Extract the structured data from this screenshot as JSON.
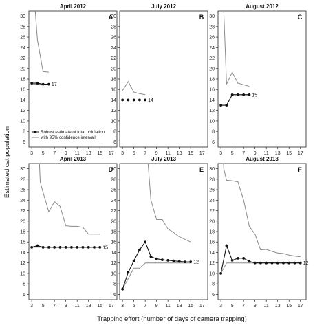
{
  "chart_data": {
    "type": "line",
    "shared": {
      "xlabel": "Trapping effort (number of days of camera trapping)",
      "ylabel": "Estimated cat population",
      "xticks": [
        3,
        5,
        7,
        9,
        11,
        13,
        15,
        17
      ],
      "yticks": [
        6,
        8,
        10,
        12,
        14,
        16,
        18,
        20,
        22,
        24,
        26,
        28,
        30
      ],
      "xlim": [
        2.5,
        18
      ],
      "ylim": [
        5,
        31
      ],
      "legend": {
        "placement": "bottom-left of panel A",
        "items": [
          "Robust estimate of total polulation",
          "with 95% confidence intervall"
        ]
      }
    },
    "panels": [
      {
        "title": "April 2012",
        "letter": "A",
        "end_label": "17",
        "estimate": {
          "x": [
            3,
            4,
            5,
            6
          ],
          "y": [
            17.2,
            17.2,
            17.0,
            17.0
          ]
        },
        "upper": {
          "x": [
            3,
            4,
            5,
            6
          ],
          "y": [
            40,
            25.5,
            19.4,
            19.3
          ]
        },
        "lower": {
          "x": [
            3,
            4,
            5,
            6
          ],
          "y": [
            17.0,
            17.0,
            17.0,
            17.0
          ]
        }
      },
      {
        "title": "July 2012",
        "letter": "B",
        "end_label": "14",
        "estimate": {
          "x": [
            3,
            4,
            5,
            6,
            7
          ],
          "y": [
            14,
            14,
            14,
            14,
            14
          ]
        },
        "upper": {
          "x": [
            3,
            4,
            5,
            6,
            7
          ],
          "y": [
            15.8,
            17.5,
            15.5,
            15.2,
            15.0
          ]
        },
        "lower": {
          "x": [
            3,
            4,
            5,
            6,
            7
          ],
          "y": [
            14,
            14,
            14,
            14,
            14
          ]
        }
      },
      {
        "title": "August 2012",
        "letter": "C",
        "end_label": "15",
        "estimate": {
          "x": [
            3,
            4,
            5,
            6,
            7,
            8
          ],
          "y": [
            13,
            13,
            15,
            15,
            15,
            15
          ]
        },
        "upper": {
          "x": [
            3,
            3.5,
            4,
            5,
            6,
            7,
            8
          ],
          "y": [
            40,
            31,
            17,
            19.3,
            17.2,
            16.9,
            16.6
          ]
        },
        "lower": {
          "x": [
            3,
            4,
            5,
            6,
            7,
            8
          ],
          "y": [
            13,
            13,
            15,
            15,
            15,
            15
          ]
        }
      },
      {
        "title": "April 2013",
        "letter": "D",
        "end_label": "15",
        "estimate": {
          "x": [
            3,
            4,
            5,
            6,
            7,
            8,
            9,
            10,
            11,
            12,
            13,
            14,
            15
          ],
          "y": [
            15,
            15.3,
            15,
            15,
            15,
            15,
            15,
            15,
            15,
            15,
            15,
            15,
            15
          ]
        },
        "upper": {
          "x": [
            4,
            4.5,
            5,
            6,
            7,
            8,
            9,
            10,
            11,
            12,
            13,
            14,
            15
          ],
          "y": [
            40,
            27.5,
            25.5,
            21.8,
            23.7,
            22.8,
            19.1,
            19,
            19,
            18.8,
            17.5,
            17.5,
            17.5
          ]
        },
        "lower": {
          "x": [
            3,
            4,
            5,
            6,
            7,
            8,
            9,
            10,
            11,
            12,
            13,
            14,
            15
          ],
          "y": [
            15,
            15,
            15,
            15,
            15,
            15,
            15,
            15,
            15,
            15,
            15,
            15,
            15
          ]
        }
      },
      {
        "title": "July 2013",
        "letter": "E",
        "end_label": "12",
        "estimate": {
          "x": [
            3,
            4,
            5,
            6,
            7,
            8,
            9,
            10,
            11,
            12,
            13,
            14,
            15
          ],
          "y": [
            7,
            10.2,
            12.4,
            14.5,
            16,
            13.2,
            12.8,
            12.6,
            12.5,
            12.4,
            12.3,
            12.2,
            12.2
          ]
        },
        "upper": {
          "x": [
            7,
            7.5,
            8,
            9,
            10,
            11,
            12,
            13,
            14,
            15
          ],
          "y": [
            40,
            31,
            24,
            20.3,
            20.3,
            18.5,
            17.8,
            17,
            16.5,
            16
          ]
        },
        "lower": {
          "x": [
            3,
            4,
            5,
            6,
            7,
            8,
            9,
            10,
            11,
            12,
            13,
            14,
            15
          ],
          "y": [
            7,
            9,
            11,
            11,
            12,
            12,
            12,
            12,
            12,
            12,
            12,
            12,
            12
          ]
        }
      },
      {
        "title": "August 2013",
        "letter": "F",
        "end_label": "12",
        "estimate": {
          "x": [
            3,
            4,
            5,
            6,
            7,
            8,
            9,
            10,
            11,
            12,
            13,
            14,
            15,
            16,
            17
          ],
          "y": [
            10,
            15.3,
            12.5,
            12.9,
            12.9,
            12.3,
            12,
            12,
            12,
            12,
            12,
            12,
            12,
            12,
            12
          ]
        },
        "upper": {
          "x": [
            3.2,
            3.5,
            4,
            5,
            6,
            7,
            8,
            9,
            10,
            11,
            12,
            13,
            14,
            15,
            16,
            17
          ],
          "y": [
            40,
            30,
            27.8,
            27.7,
            27.5,
            24,
            19,
            17.5,
            14.5,
            14.6,
            14.2,
            13.9,
            13.8,
            13.5,
            13.3,
            13.2
          ]
        },
        "lower": {
          "x": [
            3,
            4,
            5,
            6,
            7,
            8,
            9,
            10,
            11,
            12,
            13,
            14,
            15,
            16,
            17
          ],
          "y": [
            10,
            12,
            12,
            12,
            12,
            12,
            12,
            12,
            12,
            12,
            12,
            12,
            12,
            12,
            12
          ]
        }
      }
    ]
  }
}
